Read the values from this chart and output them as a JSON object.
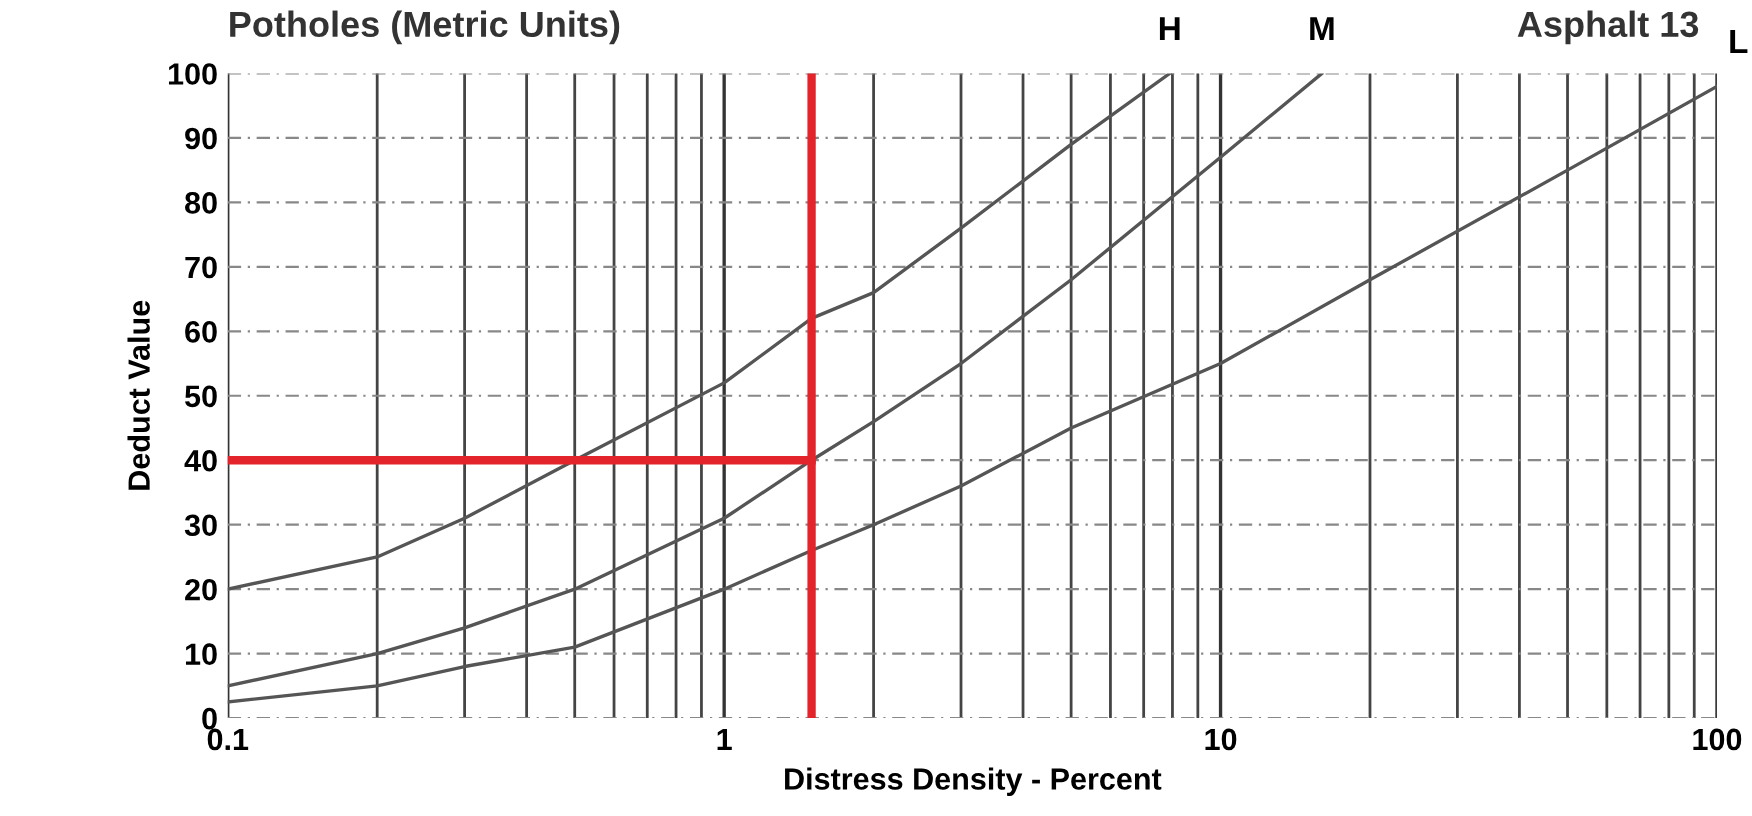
{
  "chart_data": {
    "type": "line",
    "title": "Potholes (Metric Units)",
    "xlabel": "Distress Density - Percent",
    "ylabel": "Deduct Value",
    "annotations": [
      "Asphalt 13"
    ],
    "log": "x",
    "xlim": [
      0.1,
      100
    ],
    "xticks": [
      0.1,
      1,
      10,
      100
    ],
    "ylim": [
      0,
      100
    ],
    "yticks": [
      0,
      10,
      20,
      30,
      40,
      50,
      60,
      70,
      80,
      90,
      100
    ],
    "grid": true,
    "series": [
      {
        "name": "H",
        "color": "#555555",
        "x": [
          0.1,
          0.2,
          0.3,
          0.5,
          1,
          1.5,
          2,
          3,
          5,
          7.9
        ],
        "values": [
          20,
          25,
          31,
          40,
          52,
          62,
          66,
          76,
          89,
          100
        ]
      },
      {
        "name": "M",
        "color": "#555555",
        "x": [
          0.1,
          0.2,
          0.3,
          0.5,
          1,
          1.5,
          2,
          3,
          5,
          10,
          16
        ],
        "values": [
          5,
          10,
          14,
          20,
          31,
          40,
          46,
          55,
          68,
          87,
          100
        ]
      },
      {
        "name": "L",
        "color": "#555555",
        "x": [
          0.1,
          0.2,
          0.3,
          0.5,
          1,
          1.5,
          2,
          3,
          5,
          10,
          20,
          50,
          100
        ],
        "values": [
          2.5,
          5,
          8,
          11,
          20,
          26,
          30,
          36,
          45,
          55,
          68,
          85,
          98
        ]
      }
    ],
    "ref_lines": [
      {
        "axis": "x",
        "value": 1.5,
        "color": "#e3242b"
      },
      {
        "axis": "y",
        "value": 40,
        "color": "#e3242b"
      }
    ]
  }
}
